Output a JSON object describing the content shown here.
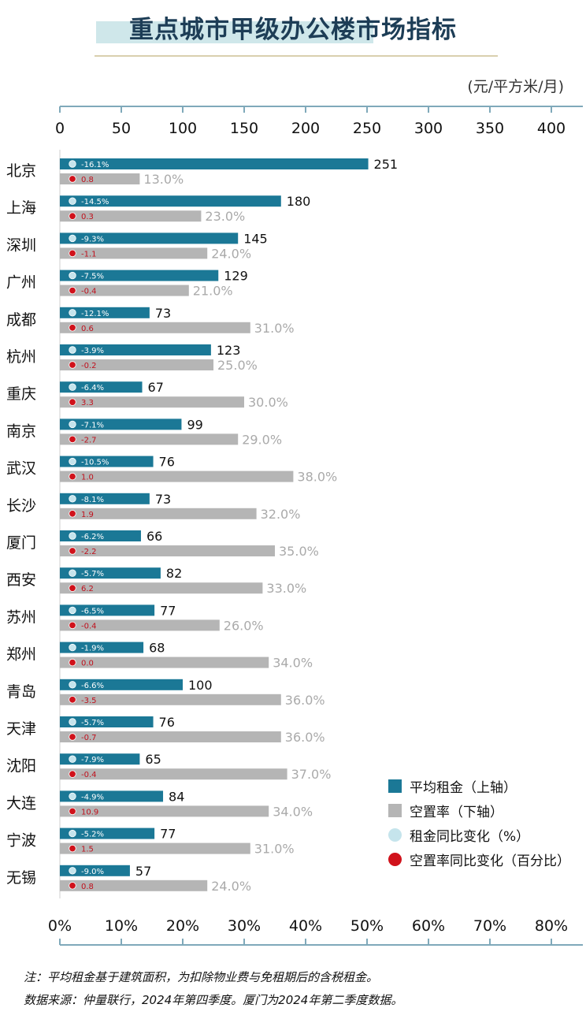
{
  "title": "重点城市甲级办公楼市场指标",
  "unit": "(元/平方米/月)",
  "colors": {
    "rent_bar": "#1b7896",
    "vacancy_bar": "#b5b5b5",
    "rent_change_dot": "#c5e4ec",
    "vacancy_change_dot": "#d0121b",
    "axis": "#7fa9ba"
  },
  "legend": {
    "rent": "平均租金（上轴）",
    "vacancy": "空置率（下轴）",
    "rent_change": "租金同比变化（%）",
    "vacancy_change": "空置率同比变化（百分比）"
  },
  "chart_data": {
    "type": "bar",
    "orientation": "horizontal",
    "categories": [
      "北京",
      "上海",
      "深圳",
      "广州",
      "成都",
      "杭州",
      "重庆",
      "南京",
      "武汉",
      "长沙",
      "厦门",
      "西安",
      "苏州",
      "郑州",
      "青岛",
      "天津",
      "沈阳",
      "大连",
      "宁波",
      "无锡"
    ],
    "top_axis": {
      "ticks": [
        "0",
        "50",
        "100",
        "150",
        "200",
        "250",
        "300",
        "350",
        "400"
      ],
      "range": [
        0,
        400
      ]
    },
    "bottom_axis": {
      "ticks": [
        "0%",
        "10%",
        "20%",
        "30%",
        "40%",
        "50%",
        "60%",
        "70%",
        "80%"
      ],
      "range": [
        0,
        80
      ]
    },
    "series": [
      {
        "name": "平均租金（上轴）",
        "axis": "top",
        "values": [
          251,
          180,
          145,
          129,
          73,
          123,
          67,
          99,
          76,
          73,
          66,
          82,
          77,
          68,
          100,
          76,
          65,
          84,
          77,
          57
        ],
        "labels": [
          "251",
          "180",
          "145",
          "129",
          "73",
          "123",
          "67",
          "99",
          "76",
          "73",
          "66",
          "82",
          "77",
          "68",
          "100",
          "76",
          "65",
          "84",
          "77",
          "57"
        ]
      },
      {
        "name": "空置率（下轴）",
        "axis": "bottom",
        "values": [
          13.0,
          23.0,
          24.0,
          21.0,
          31.0,
          25.0,
          30.0,
          29.0,
          38.0,
          32.0,
          35.0,
          33.0,
          26.0,
          34.0,
          36.0,
          36.0,
          37.0,
          34.0,
          31.0,
          24.0
        ],
        "labels": [
          "13.0%",
          "23.0%",
          "24.0%",
          "21.0%",
          "31.0%",
          "25.0%",
          "30.0%",
          "29.0%",
          "38.0%",
          "32.0%",
          "35.0%",
          "33.0%",
          "26.0%",
          "34.0%",
          "36.0%",
          "36.0%",
          "37.0%",
          "34.0%",
          "31.0%",
          "24.0%"
        ]
      },
      {
        "name": "租金同比变化（%）",
        "labels": [
          "-16.1%",
          "-14.5%",
          "-9.3%",
          "-7.5%",
          "-12.1%",
          "-3.9%",
          "-6.4%",
          "-7.1%",
          "-10.5%",
          "-8.1%",
          "-6.2%",
          "-5.7%",
          "-6.5%",
          "-1.9%",
          "-6.6%",
          "-5.7%",
          "-7.9%",
          "-4.9%",
          "-5.2%",
          "-9.0%"
        ]
      },
      {
        "name": "空置率同比变化（百分比）",
        "labels": [
          "0.8",
          "0.3",
          "-1.1",
          "-0.4",
          "0.6",
          "-0.2",
          "3.3",
          "-2.7",
          "1.0",
          "1.9",
          "-2.2",
          "6.2",
          "-0.4",
          "0.0",
          "-3.5",
          "-0.7",
          "-0.4",
          "10.9",
          "1.5",
          "0.8"
        ]
      }
    ]
  },
  "notes": [
    "注：平均租金基于建筑面积，为扣除物业费与免租期后的含税租金。",
    "数据来源：仲量联行，2024年第四季度。厦门为2024年第二季度数据。"
  ]
}
